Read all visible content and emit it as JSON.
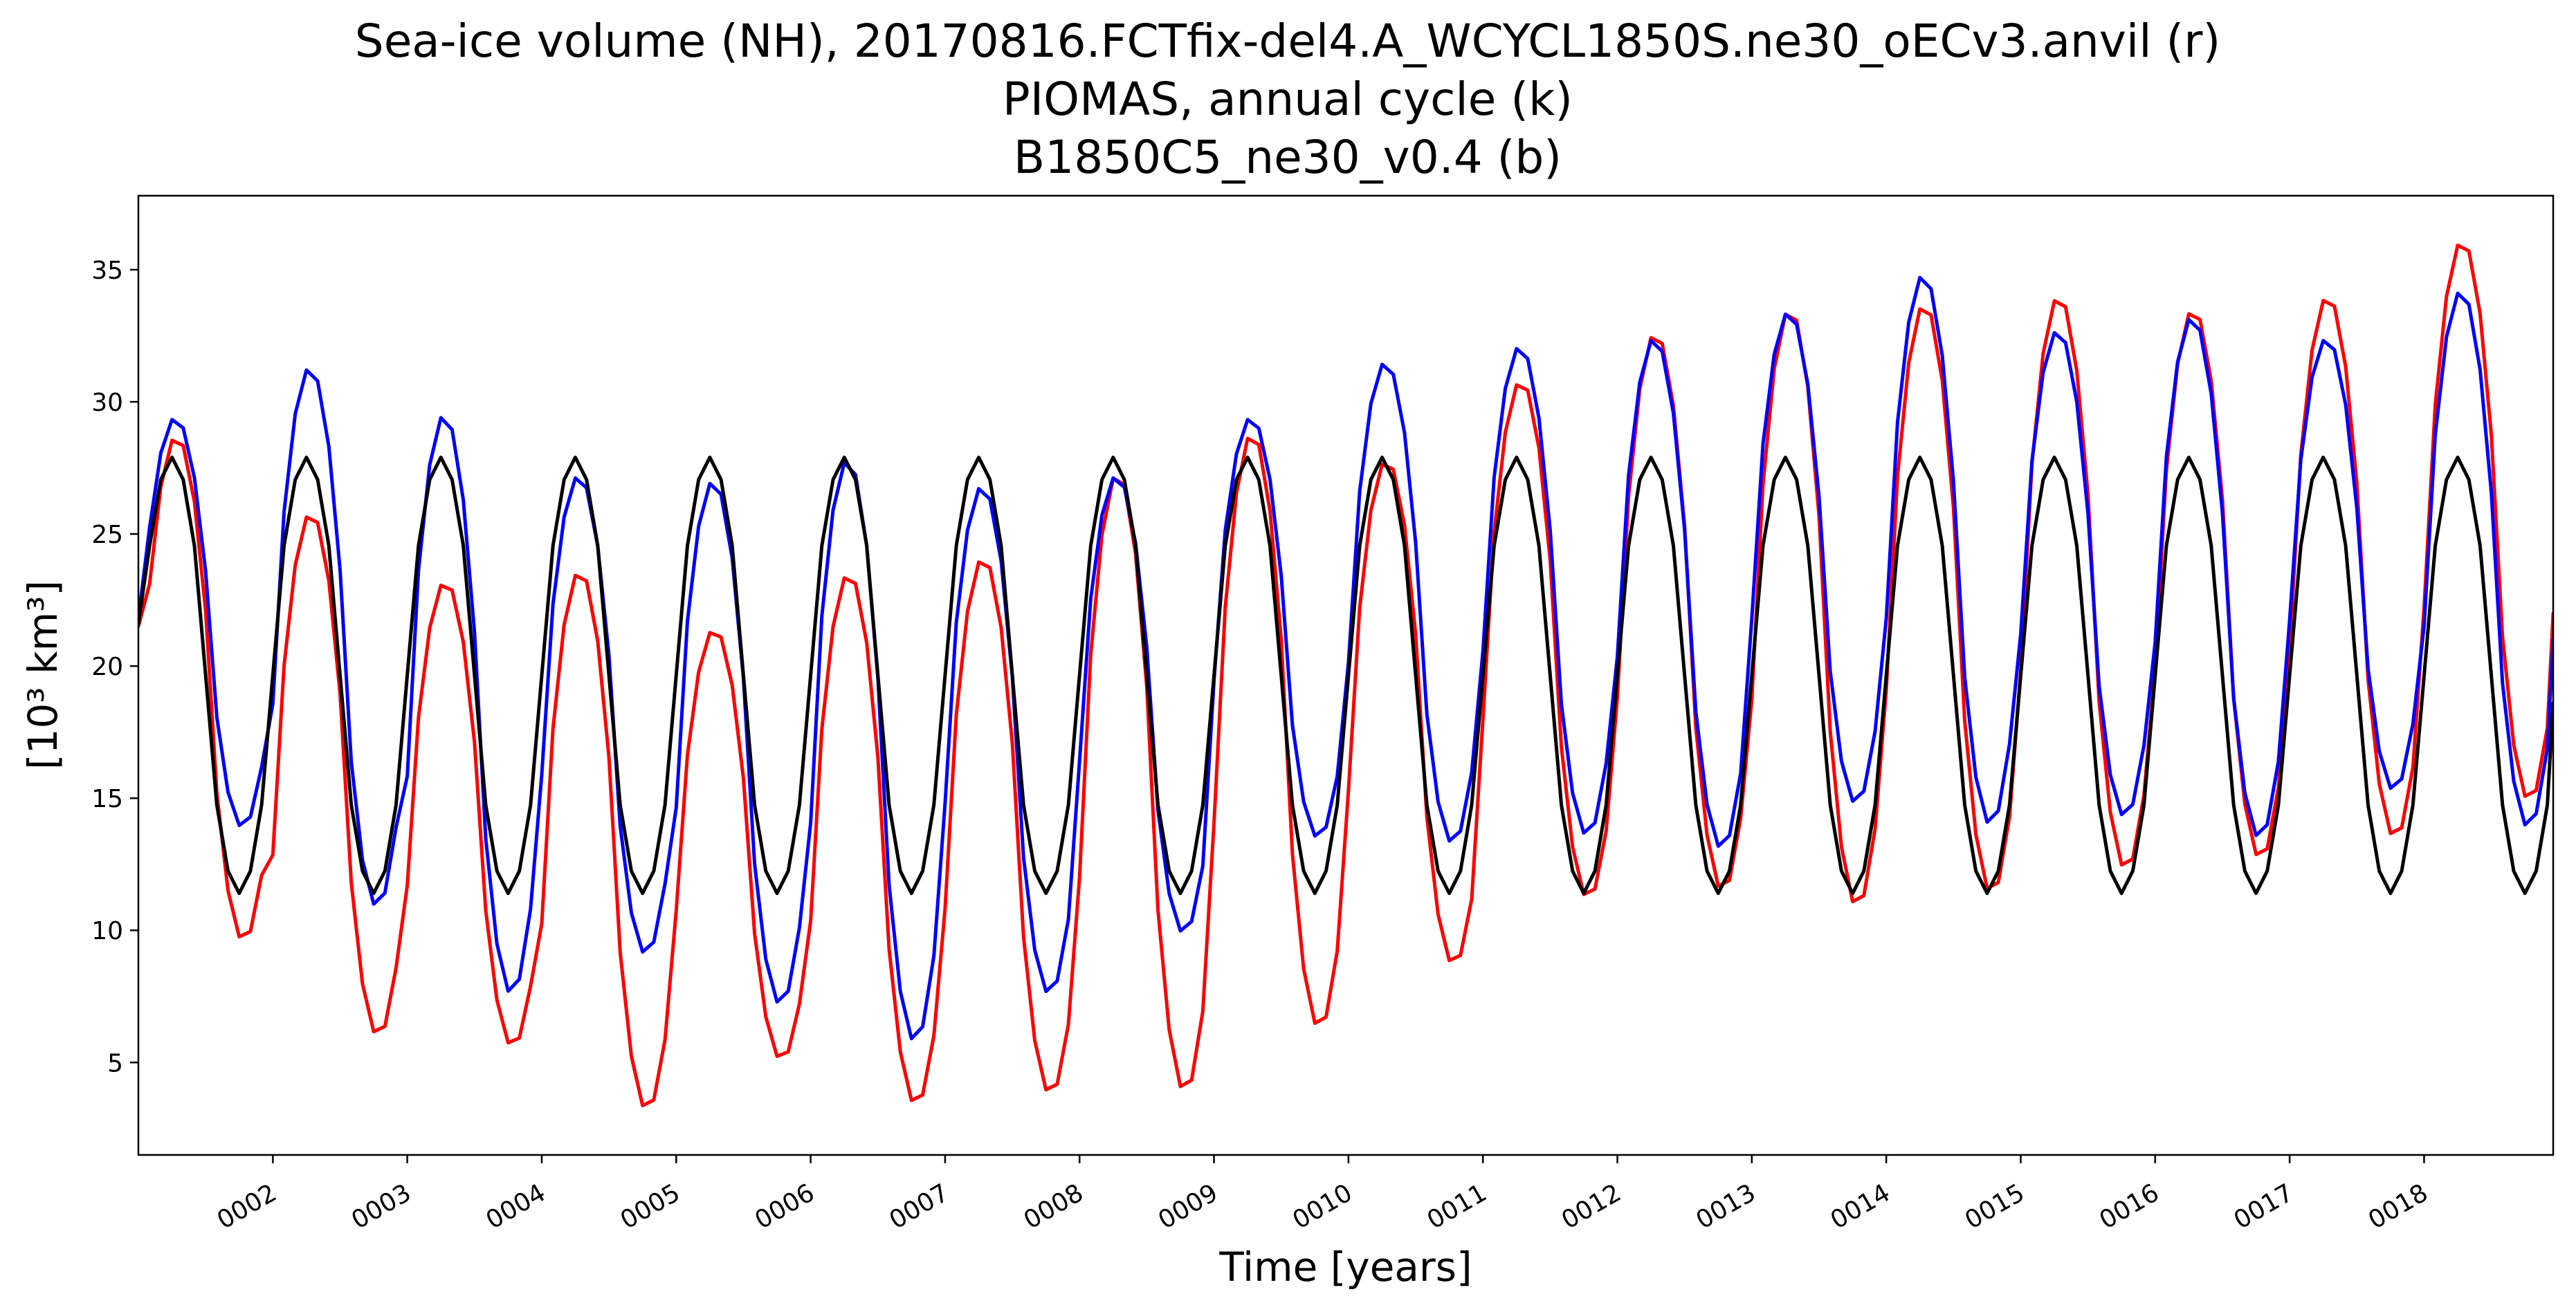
{
  "chart_data": {
    "type": "line",
    "title_lines": [
      "Sea-ice volume (NH), 20170816.FCTfix-del4.A_WCYCL1850S.ne30_oECv3.anvil (r)",
      "PIOMAS, annual cycle (k)",
      "B1850C5_ne30_v0.4 (b)"
    ],
    "xlabel": "Time [years]",
    "ylabel": "[10³ km³]",
    "xlim": [
      1.0,
      18.96
    ],
    "ylim": [
      1.5,
      37.8
    ],
    "x_ticks": [
      2,
      3,
      4,
      5,
      6,
      7,
      8,
      9,
      10,
      11,
      12,
      13,
      14,
      15,
      16,
      17,
      18
    ],
    "x_tick_labels": [
      "0002",
      "0003",
      "0004",
      "0005",
      "0006",
      "0007",
      "0008",
      "0009",
      "0010",
      "0011",
      "0012",
      "0013",
      "0014",
      "0015",
      "0016",
      "0017",
      "0018"
    ],
    "y_ticks": [
      5,
      10,
      15,
      20,
      25,
      30,
      35
    ],
    "y_tick_labels": [
      "5",
      "10",
      "15",
      "20",
      "25",
      "30",
      "35"
    ],
    "grid": false,
    "legend": "none",
    "samples_per_year": 12,
    "series": [
      {
        "color": "#ff0000",
        "peak_month": 3.4,
        "peaks": [
          28.7,
          25.8,
          23.2,
          23.6,
          21.4,
          23.5,
          24.1,
          27.3,
          28.8,
          27.8,
          30.8,
          32.6,
          33.5,
          33.7,
          34.0,
          33.5,
          34.0,
          36.1
        ],
        "minima": [
          9.6,
          6.0,
          5.6,
          3.2,
          5.1,
          3.4,
          3.8,
          3.9,
          6.3,
          8.7,
          11.2,
          11.5,
          10.9,
          11.4,
          12.3,
          12.7,
          13.5,
          14.9
        ],
        "start": 21.5,
        "end": 22.0
      },
      {
        "color": "#0000ff",
        "peak_month": 3.3,
        "peaks": [
          29.4,
          31.3,
          29.5,
          27.2,
          27.0,
          27.8,
          26.8,
          27.2,
          29.4,
          31.5,
          32.1,
          32.4,
          33.4,
          34.8,
          32.7,
          33.2,
          32.4,
          34.2
        ],
        "minima": [
          13.9,
          10.9,
          7.6,
          9.1,
          7.2,
          5.8,
          7.6,
          9.9,
          13.5,
          13.3,
          13.6,
          13.1,
          14.8,
          14.0,
          14.3,
          13.5,
          15.3,
          13.9
        ],
        "start": 21.8,
        "end": 21.0
      },
      {
        "color": "#000000",
        "peak_month": 3.0,
        "peaks": [
          27.9,
          27.9,
          27.9,
          27.9,
          27.9,
          27.9,
          27.9,
          27.9,
          27.9,
          27.9,
          27.9,
          27.9,
          27.9,
          27.9,
          27.9,
          27.9,
          27.9,
          27.9
        ],
        "minima": [
          11.4,
          11.4,
          11.4,
          11.4,
          11.4,
          11.4,
          11.4,
          11.4,
          11.4,
          11.4,
          11.4,
          11.4,
          11.4,
          11.4,
          11.4,
          11.4,
          11.4,
          11.4
        ],
        "start": 21.6,
        "end": 18.6
      }
    ]
  }
}
